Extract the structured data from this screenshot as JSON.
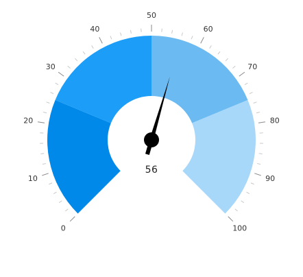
{
  "chart_data": {
    "type": "gauge",
    "value": 56,
    "value_label": "56",
    "scale": {
      "min": 0,
      "max": 100,
      "major_step": 10,
      "minor_step": 2
    },
    "tick_labels": [
      "0",
      "10",
      "20",
      "30",
      "40",
      "50",
      "60",
      "70",
      "80",
      "90",
      "100"
    ],
    "bands": [
      {
        "from": 0,
        "to": 25,
        "color": "#0089e8"
      },
      {
        "from": 25,
        "to": 50,
        "color": "#1c9ef8"
      },
      {
        "from": 50,
        "to": 75,
        "color": "#6bbaf2"
      },
      {
        "from": 75,
        "to": 100,
        "color": "#a7d7f9"
      }
    ],
    "needle_color": "#000000"
  }
}
